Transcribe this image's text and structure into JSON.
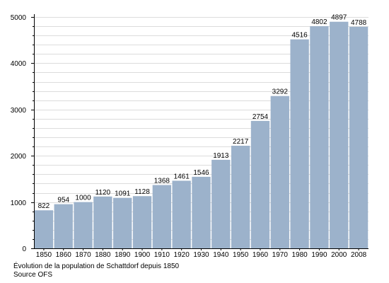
{
  "chart_data": {
    "type": "bar",
    "categories": [
      "1850",
      "1860",
      "1870",
      "1880",
      "1890",
      "1900",
      "1910",
      "1920",
      "1930",
      "1940",
      "1950",
      "1960",
      "1970",
      "1980",
      "1990",
      "2000",
      "2008"
    ],
    "values": [
      822,
      954,
      1000,
      1120,
      1091,
      1128,
      1368,
      1461,
      1546,
      1913,
      2217,
      2754,
      3292,
      4516,
      4802,
      4897,
      4788
    ],
    "data_labels": [
      "822",
      "954",
      "1000",
      "1120",
      "1091",
      "1128",
      "1368",
      "1461",
      "1546",
      "1913",
      "2217",
      "2754",
      "3292",
      "4516",
      "4802",
      "4897",
      "4788"
    ],
    "ylim": [
      0,
      5000
    ],
    "y_ticks": [
      0,
      1000,
      2000,
      3000,
      4000,
      5000
    ],
    "y_tick_labels": [
      "0",
      "1000",
      "2000",
      "3000",
      "4000",
      "5000"
    ],
    "y_minor_step": 200,
    "grid": true,
    "bar_color": "#9cb2cb",
    "title": "",
    "xlabel": "",
    "ylabel": ""
  },
  "caption": {
    "line1": "Évolution de la population de Schattdorf depuis 1850",
    "line2": "Source OFS"
  }
}
